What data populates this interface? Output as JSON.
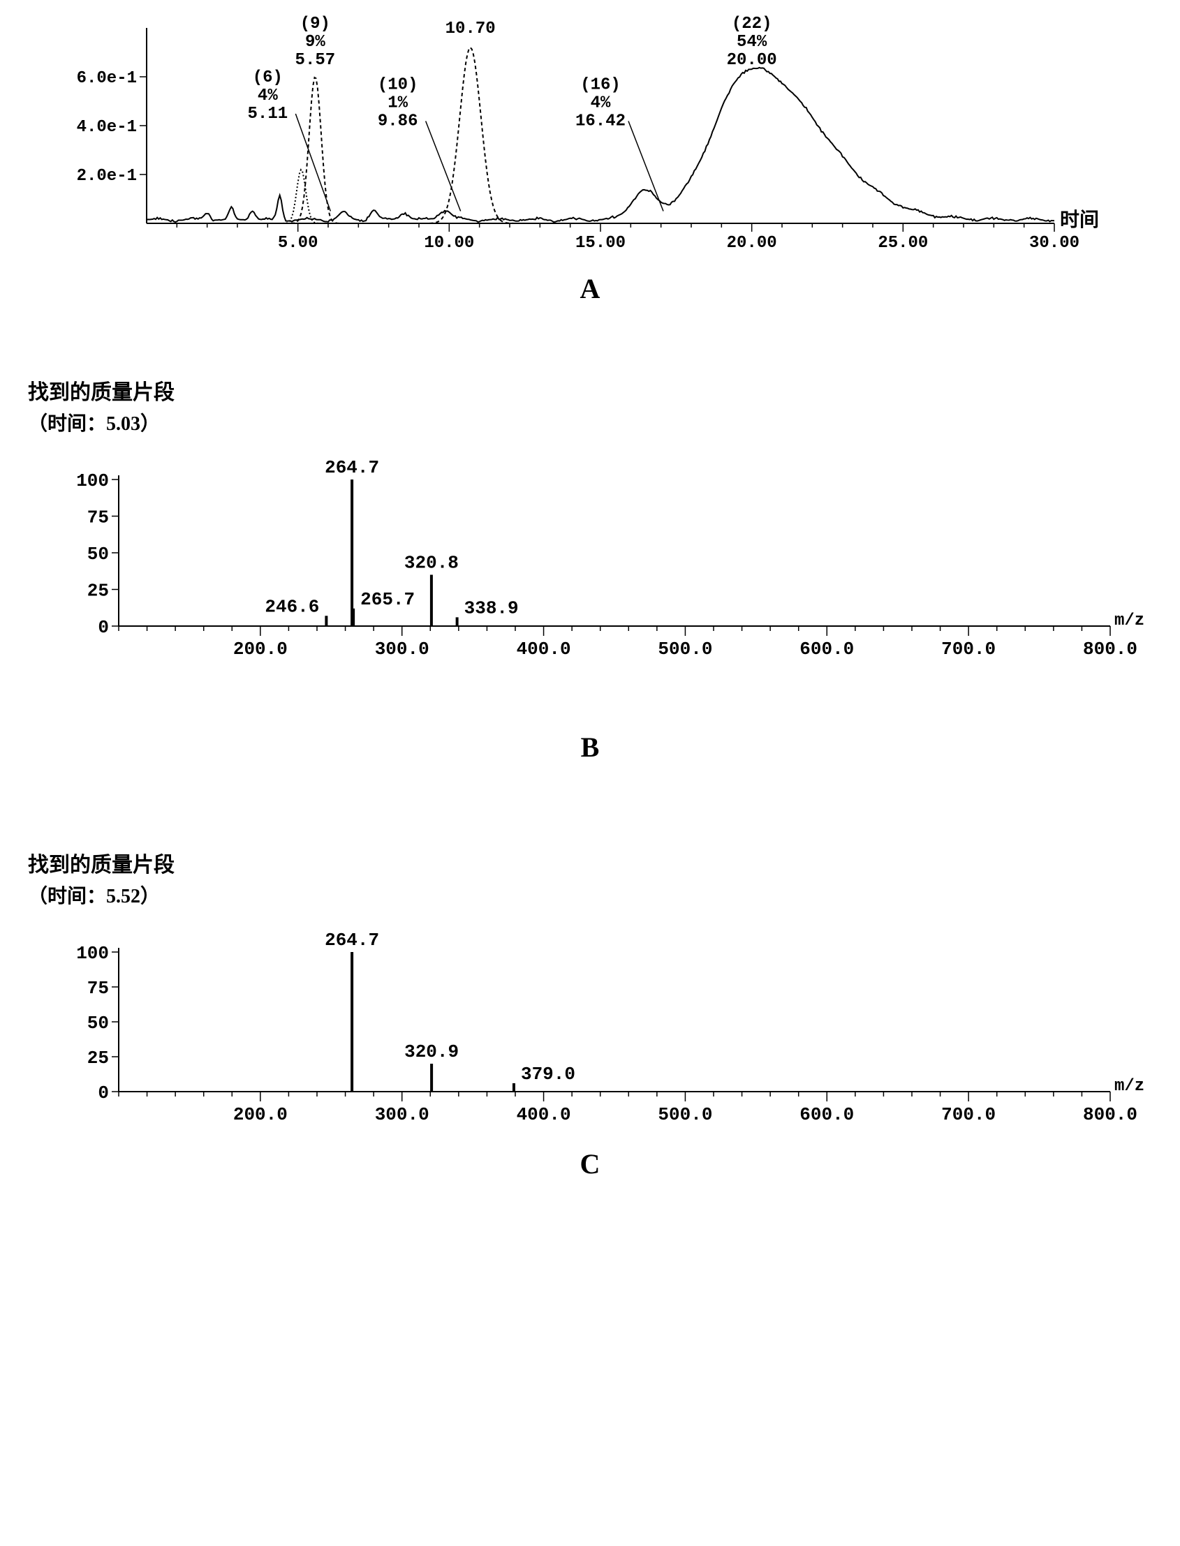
{
  "panelA": {
    "label": "A",
    "type": "chromatogram",
    "x_axis_label": "时间",
    "x_range": [
      0,
      30
    ],
    "x_ticks": [
      5,
      10,
      15,
      20,
      25,
      30
    ],
    "x_tick_labels": [
      "5.00",
      "10.00",
      "15.00",
      "20.00",
      "25.00",
      "30.00"
    ],
    "y_range": [
      0,
      0.8
    ],
    "y_ticks": [
      0.2,
      0.4,
      0.6
    ],
    "y_tick_labels": [
      "2.0e-1",
      "4.0e-1",
      "6.0e-1"
    ],
    "peaks": [
      {
        "id": "(6)",
        "pct": "4%",
        "rt": "5.11",
        "x": 5.11,
        "height": 0.22,
        "width": 0.3,
        "style": "dotted"
      },
      {
        "id": "(9)",
        "pct": "9%",
        "rt": "5.57",
        "x": 5.57,
        "height": 0.6,
        "width": 0.4,
        "style": "dashed"
      },
      {
        "id": "(10)",
        "pct": "1%",
        "rt": "9.86",
        "x": 9.86,
        "height": 0.04,
        "width": 0.4,
        "style": "solid"
      },
      {
        "id": "",
        "pct": "",
        "rt": "10.70",
        "x": 10.7,
        "height": 0.72,
        "width": 0.7,
        "style": "dashed"
      },
      {
        "id": "(16)",
        "pct": "4%",
        "rt": "16.42",
        "x": 16.42,
        "height": 0.11,
        "width": 0.8,
        "style": "solid"
      },
      {
        "id": "(22)",
        "pct": "54%",
        "rt": "20.00",
        "x": 20.0,
        "height": 0.62,
        "width": 2.5,
        "style": "solid",
        "tail": 3.5
      }
    ],
    "annotations": [
      {
        "lines": [
          "(9)",
          "9%",
          "5.57"
        ],
        "x": 5.57,
        "y_top": 0.8,
        "align": "above"
      },
      {
        "lines": [
          "10.70"
        ],
        "x": 10.7,
        "y_top": 0.78,
        "align": "above-single"
      },
      {
        "lines": [
          "(22)",
          "54%",
          "20.00"
        ],
        "x": 20.0,
        "y_top": 0.8,
        "align": "above"
      },
      {
        "lines": [
          "(6)",
          "4%",
          "5.11"
        ],
        "x": 4.0,
        "y_top": 0.58,
        "align": "left"
      },
      {
        "lines": [
          "(10)",
          "1%",
          "9.86"
        ],
        "x": 8.3,
        "y_top": 0.55,
        "align": "left"
      },
      {
        "lines": [
          "(16)",
          "4%",
          "16.42"
        ],
        "x": 15.0,
        "y_top": 0.55,
        "align": "left"
      }
    ],
    "style": {
      "bg": "#ffffff",
      "axis_color": "#000000",
      "text_color": "#000000",
      "axis_fontsize": 24,
      "label_fontsize": 24,
      "axis_font": "Courier New, monospace"
    }
  },
  "panelB": {
    "label": "B",
    "type": "mass-spectrum",
    "title": "找到的质量片段",
    "subtitle": "（时间：5.03）",
    "x_axis_label": "m/z",
    "x_range": [
      100,
      800
    ],
    "x_ticks": [
      200,
      300,
      400,
      500,
      600,
      700,
      800
    ],
    "x_tick_labels": [
      "200.0",
      "300.0",
      "400.0",
      "500.0",
      "600.0",
      "700.0",
      "800.0"
    ],
    "y_range": [
      0,
      100
    ],
    "y_ticks": [
      0,
      25,
      50,
      75,
      100
    ],
    "y_tick_labels": [
      "0",
      "25",
      "50",
      "75",
      "100"
    ],
    "peaks": [
      {
        "mz": 246.6,
        "intensity": 7,
        "label": "246.6",
        "label_side": "left"
      },
      {
        "mz": 264.7,
        "intensity": 100,
        "label": "264.7",
        "label_side": "top"
      },
      {
        "mz": 265.7,
        "intensity": 12,
        "label": "265.7",
        "label_side": "right"
      },
      {
        "mz": 320.8,
        "intensity": 35,
        "label": "320.8",
        "label_side": "top"
      },
      {
        "mz": 338.9,
        "intensity": 6,
        "label": "338.9",
        "label_side": "right"
      }
    ],
    "style": {
      "bg": "#ffffff",
      "axis_color": "#000000",
      "text_color": "#000000",
      "axis_fontsize": 26,
      "label_fontsize": 26,
      "title_fontsize": 30,
      "axis_font": "Courier New, monospace"
    }
  },
  "panelC": {
    "label": "C",
    "type": "mass-spectrum",
    "title": "找到的质量片段",
    "subtitle": "（时间：5.52）",
    "x_axis_label": "m/z",
    "x_range": [
      100,
      800
    ],
    "x_ticks": [
      200,
      300,
      400,
      500,
      600,
      700,
      800
    ],
    "x_tick_labels": [
      "200.0",
      "300.0",
      "400.0",
      "500.0",
      "600.0",
      "700.0",
      "800.0"
    ],
    "y_range": [
      0,
      100
    ],
    "y_ticks": [
      0,
      25,
      50,
      75,
      100
    ],
    "y_tick_labels": [
      "0",
      "25",
      "50",
      "75",
      "100"
    ],
    "peaks": [
      {
        "mz": 264.7,
        "intensity": 100,
        "label": "264.7",
        "label_side": "top"
      },
      {
        "mz": 320.9,
        "intensity": 20,
        "label": "320.9",
        "label_side": "top"
      },
      {
        "mz": 379.0,
        "intensity": 6,
        "label": "379.0",
        "label_side": "right"
      }
    ],
    "style": {
      "bg": "#ffffff",
      "axis_color": "#000000",
      "text_color": "#000000",
      "axis_fontsize": 26,
      "label_fontsize": 26,
      "title_fontsize": 30,
      "axis_font": "Courier New, monospace"
    }
  }
}
